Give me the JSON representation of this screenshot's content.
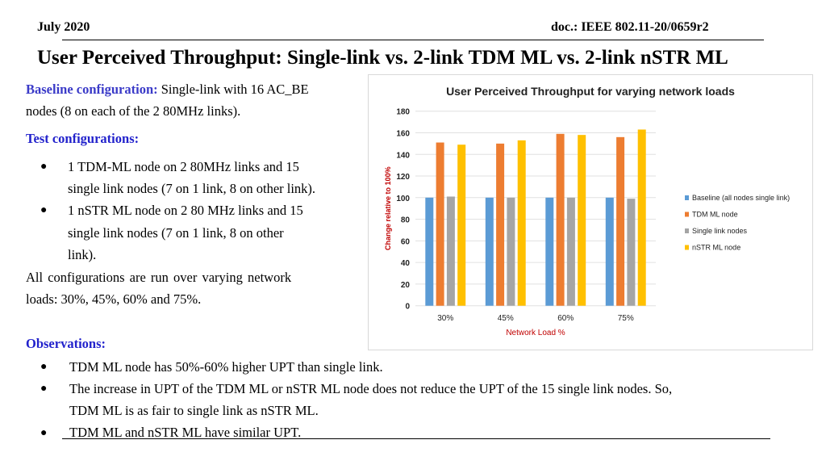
{
  "header": {
    "date": "July 2020",
    "doc": "doc.: IEEE 802.11-20/0659r2"
  },
  "title": "User Perceived Throughput: Single-link vs.  2-link TDM ML vs. 2-link nSTR ML",
  "baseline": {
    "label": "Baseline configuration:",
    "text1": " Single-link with 16 AC_BE",
    "text2": "nodes (8 on each of the 2 80MHz links)."
  },
  "test": {
    "label": "Test configurations:",
    "bullets": [
      {
        "line1": "1 TDM-ML node on 2 80MHz links and 15",
        "line2": "single link nodes (7 on 1 link, 8 on other link)."
      },
      {
        "line1": "1 nSTR ML node on 2 80 MHz  links and 15",
        "line2": "single link nodes (7 on 1 link,  8 on other",
        "line3": "link)."
      }
    ],
    "note1": "All  configurations  are  run  over  varying  network",
    "note2": "loads: 30%, 45%, 60% and 75%."
  },
  "observations": {
    "label": "Observations:",
    "items": [
      "TDM ML node has 50%-60% higher UPT than single link.",
      "The increase in UPT of the TDM ML or nSTR ML node does not reduce the UPT of the 15 single link nodes. So,",
      "TDM ML is as fair to single link as nSTR ML.",
      "TDM ML and nSTR ML have similar UPT."
    ]
  },
  "chart_data": {
    "type": "bar",
    "title": "User Perceived Throughput for varying network loads",
    "xlabel": "Network Load %",
    "ylabel": "Change relative to 100%",
    "categories": [
      "30%",
      "45%",
      "60%",
      "75%"
    ],
    "ylim": [
      0,
      180
    ],
    "yticks": [
      0,
      20,
      40,
      60,
      80,
      100,
      120,
      140,
      160,
      180
    ],
    "grid": true,
    "legend": "right",
    "series": [
      {
        "name": "Baseline (all nodes single link)",
        "color": "#5b9bd5",
        "values": [
          100,
          100,
          100,
          100
        ]
      },
      {
        "name": "TDM ML node",
        "color": "#ed7d31",
        "values": [
          151,
          150,
          159,
          156
        ]
      },
      {
        "name": "Single link nodes",
        "color": "#a5a5a5",
        "values": [
          101,
          100,
          100,
          99
        ]
      },
      {
        "name": "nSTR ML node",
        "color": "#ffc000",
        "values": [
          149,
          153,
          158,
          163
        ]
      }
    ]
  }
}
